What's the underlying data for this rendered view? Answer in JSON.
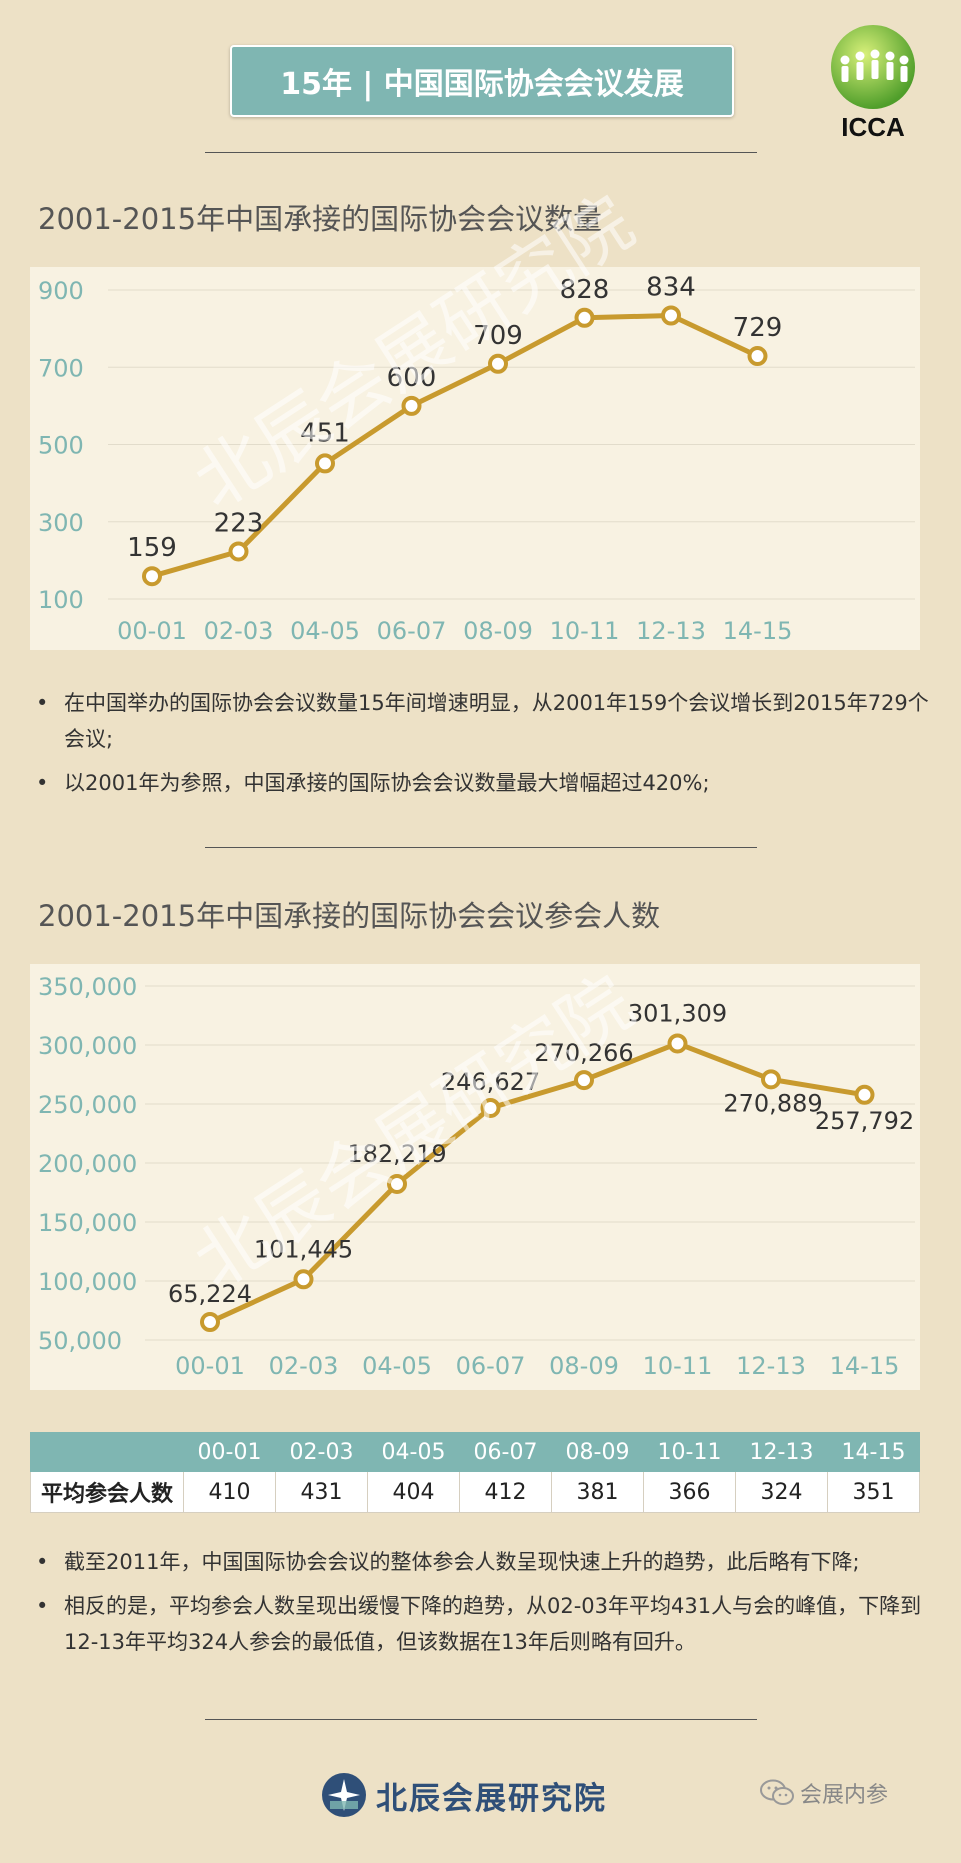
{
  "header": {
    "title": "15年 | 中国国际协会会议发展",
    "logo_text": "ICCA"
  },
  "section1": {
    "title": "2001-2015年中国承接的国际协会会议数量",
    "bullets": [
      "在中国举办的国际协会会议数量15年间增速明显，从2001年159个会议增长到2015年729个会议;",
      "以2001年为参照，中国承接的国际协会会议数量最大增幅超过420%;"
    ]
  },
  "section2": {
    "title": "2001-2015年中国承接的国际协会会议参会人数",
    "bullets": [
      "截至2011年，中国国际协会会议的整体参会人数呈现快速上升的趋势，此后略有下降;",
      "相反的是，平均参会人数呈现出缓慢下降的趋势，从02-03年平均431人与会的峰值，下降到12-13年平均324人参会的最低值，但该数据在13年后则略有回升。"
    ]
  },
  "avg_table": {
    "row_label": "平均参会人数",
    "headers": [
      "00-01",
      "02-03",
      "04-05",
      "06-07",
      "08-09",
      "10-11",
      "12-13",
      "14-15"
    ],
    "values": [
      "410",
      "431",
      "404",
      "412",
      "381",
      "366",
      "324",
      "351"
    ]
  },
  "chart_data": [
    {
      "type": "line",
      "title": "2001-2015年中国承接的国际协会会议数量",
      "categories": [
        "00-01",
        "02-03",
        "04-05",
        "06-07",
        "08-09",
        "10-11",
        "12-13",
        "14-15"
      ],
      "values": [
        159,
        223,
        451,
        600,
        709,
        828,
        834,
        729
      ],
      "labels": [
        "159",
        "223",
        "451",
        "600",
        "709",
        "828",
        "834",
        "729"
      ],
      "yticks": [
        "100",
        "300",
        "500",
        "700",
        "900"
      ],
      "ylim": [
        100,
        900
      ],
      "grid": true,
      "line_color": "#c89a2e"
    },
    {
      "type": "line",
      "title": "2001-2015年中国承接的国际协会会议参会人数",
      "categories": [
        "00-01",
        "02-03",
        "04-05",
        "06-07",
        "08-09",
        "10-11",
        "12-13",
        "14-15"
      ],
      "values": [
        65224,
        101445,
        182219,
        246627,
        270266,
        301309,
        270889,
        257792
      ],
      "labels": [
        "65,224",
        "101,445",
        "182,219",
        "246,627",
        "270,266",
        "301,309",
        "270,889",
        "257,792"
      ],
      "yticks": [
        "50,000",
        "100,000",
        "150,000",
        "200,000",
        "250,000",
        "300,000",
        "350,000"
      ],
      "ylim": [
        50000,
        350000
      ],
      "grid": true,
      "line_color": "#c89a2e"
    }
  ],
  "watermark": "北辰会展研究院",
  "footer": {
    "brand": "北辰会展研究院",
    "wechat": "会展内参"
  },
  "colors": {
    "background": "#ede1c6",
    "accent": "#7fb6b2",
    "line": "#c89a2e",
    "axis_label": "#7fb6b2"
  }
}
